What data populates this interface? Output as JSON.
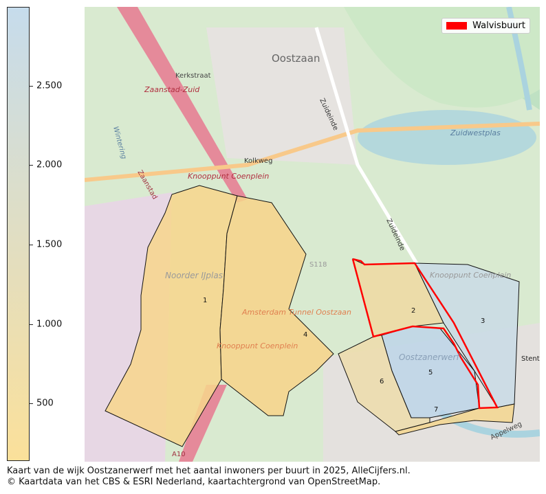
{
  "colorbar": {
    "range": [
      138,
      2996
    ],
    "color_low": "#fbe09a",
    "color_high": "#c6dcec",
    "ticks": [
      {
        "value": 2500,
        "label": "2.500"
      },
      {
        "value": 2000,
        "label": "2.000"
      },
      {
        "value": 1500,
        "label": "1.500"
      },
      {
        "value": 1000,
        "label": "1.000"
      },
      {
        "value": 500,
        "label": "500"
      }
    ]
  },
  "legend": {
    "label": "Walvisbuurt",
    "color": "#ff0000"
  },
  "map_labels": {
    "oostzaan": "Oostzaan",
    "kerkstraat": "Kerkstraat",
    "zaanstad_zuid": "Zaanstad-Zuid",
    "zuideinde": "Zuideinde",
    "zuideinde2": "Zuideinde",
    "kolkweg": "Kolkweg",
    "knooppunt": "Knooppunt Coenplein",
    "knooppunt2": "Knooppunt Coenplein",
    "knooppunt3": "Knooppunt Coenplein",
    "zuidwestplas": "Zuidwestplas",
    "noorder_ijplas": "Noorder IJplas",
    "tunnel": "Amsterdam Tunnel Oostzaan",
    "oostzanerwerf": "Oostzanerwerf",
    "a10": "A10",
    "appelweg": "Appelweg",
    "stent": "Stent",
    "zaanstad": "Zaanstad",
    "wintering": "Wintering",
    "s118": "S118"
  },
  "neighbourhoods": [
    {
      "id": "1",
      "color": "#f7d68c"
    },
    {
      "id": "2",
      "color": "#efd9a2"
    },
    {
      "id": "3",
      "color": "#c9dbe6"
    },
    {
      "id": "4",
      "color": "#f7d38a"
    },
    {
      "id": "5",
      "color": "#bdd5e9"
    },
    {
      "id": "6",
      "color": "#eddcab"
    },
    {
      "id": "7",
      "color": "#f5d68f"
    }
  ],
  "caption": {
    "line1": "Kaart van de wijk Oostzanerwerf met het aantal inwoners per buurt in 2025, AlleCijfers.nl.",
    "line2": "© Kaartdata van het CBS & ESRI Nederland, kaartachtergrond van OpenStreetMap."
  }
}
